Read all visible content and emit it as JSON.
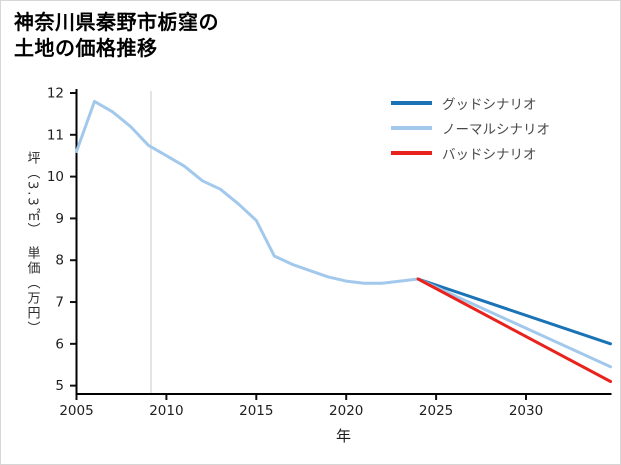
{
  "title": {
    "line1": "神奈川県秦野市栃窪の",
    "line2": "土地の価格推移"
  },
  "chart_data": {
    "type": "line",
    "title": "神奈川県秦野市栃窪の土地の価格推移",
    "title_lines": [
      "神奈川県秦野市栃窪の",
      "土地の価格推移"
    ],
    "xlabel": "年",
    "ylabel": "坪（3.3㎡）　単価（万円）",
    "xlim": [
      2005,
      2034.7
    ],
    "ylim": [
      4.8,
      12
    ],
    "xticks": [
      2005,
      2010,
      2015,
      2020,
      2025,
      2030
    ],
    "yticks": [
      5,
      6,
      7,
      8,
      9,
      10,
      11,
      12
    ],
    "grid": false,
    "legend_position": "top-right",
    "history": {
      "color": "#a2c9ec",
      "x": [
        2005,
        2006,
        2007,
        2008,
        2009,
        2010,
        2011,
        2012,
        2013,
        2014,
        2015,
        2016,
        2017,
        2018,
        2019,
        2020,
        2021,
        2022,
        2023,
        2024
      ],
      "y": [
        10.6,
        11.8,
        11.55,
        11.2,
        10.75,
        10.5,
        10.25,
        9.9,
        9.7,
        9.35,
        8.95,
        8.1,
        7.9,
        7.75,
        7.6,
        7.5,
        7.45,
        7.45,
        7.5,
        7.55
      ]
    },
    "scenarios": [
      {
        "name": "グッドシナリオ",
        "color": "#1a73b5",
        "x": [
          2024,
          2034.7
        ],
        "y": [
          7.55,
          6.0
        ]
      },
      {
        "name": "ノーマルシナリオ",
        "color": "#a2c9ec",
        "x": [
          2024,
          2034.7
        ],
        "y": [
          7.55,
          5.45
        ]
      },
      {
        "name": "バッドシナリオ",
        "color": "#e8231d",
        "x": [
          2024,
          2034.7
        ],
        "y": [
          7.55,
          5.1
        ]
      }
    ]
  }
}
